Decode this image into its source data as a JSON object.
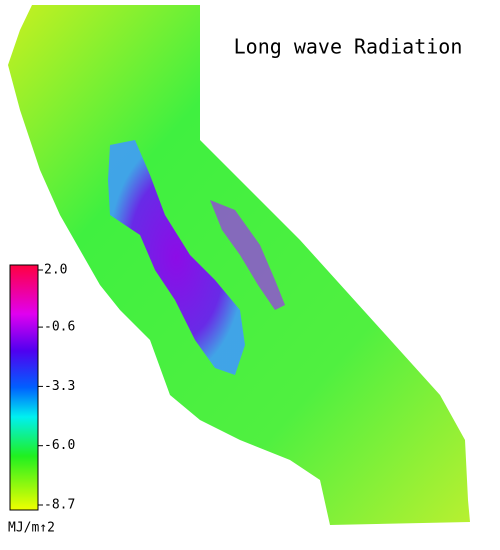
{
  "title": "Long wave Radiation",
  "colorbar": {
    "lim": [
      -8.7,
      2.0
    ],
    "ticks": [
      {
        "value": 2.0,
        "label": "2.0"
      },
      {
        "value": -0.6,
        "label": "-0.6"
      },
      {
        "value": -3.3,
        "label": "-3.3"
      },
      {
        "value": -6.0,
        "label": "-6.0"
      },
      {
        "value": -8.7,
        "label": "-8.7"
      }
    ],
    "unit": "MJ/m↑2"
  }
}
